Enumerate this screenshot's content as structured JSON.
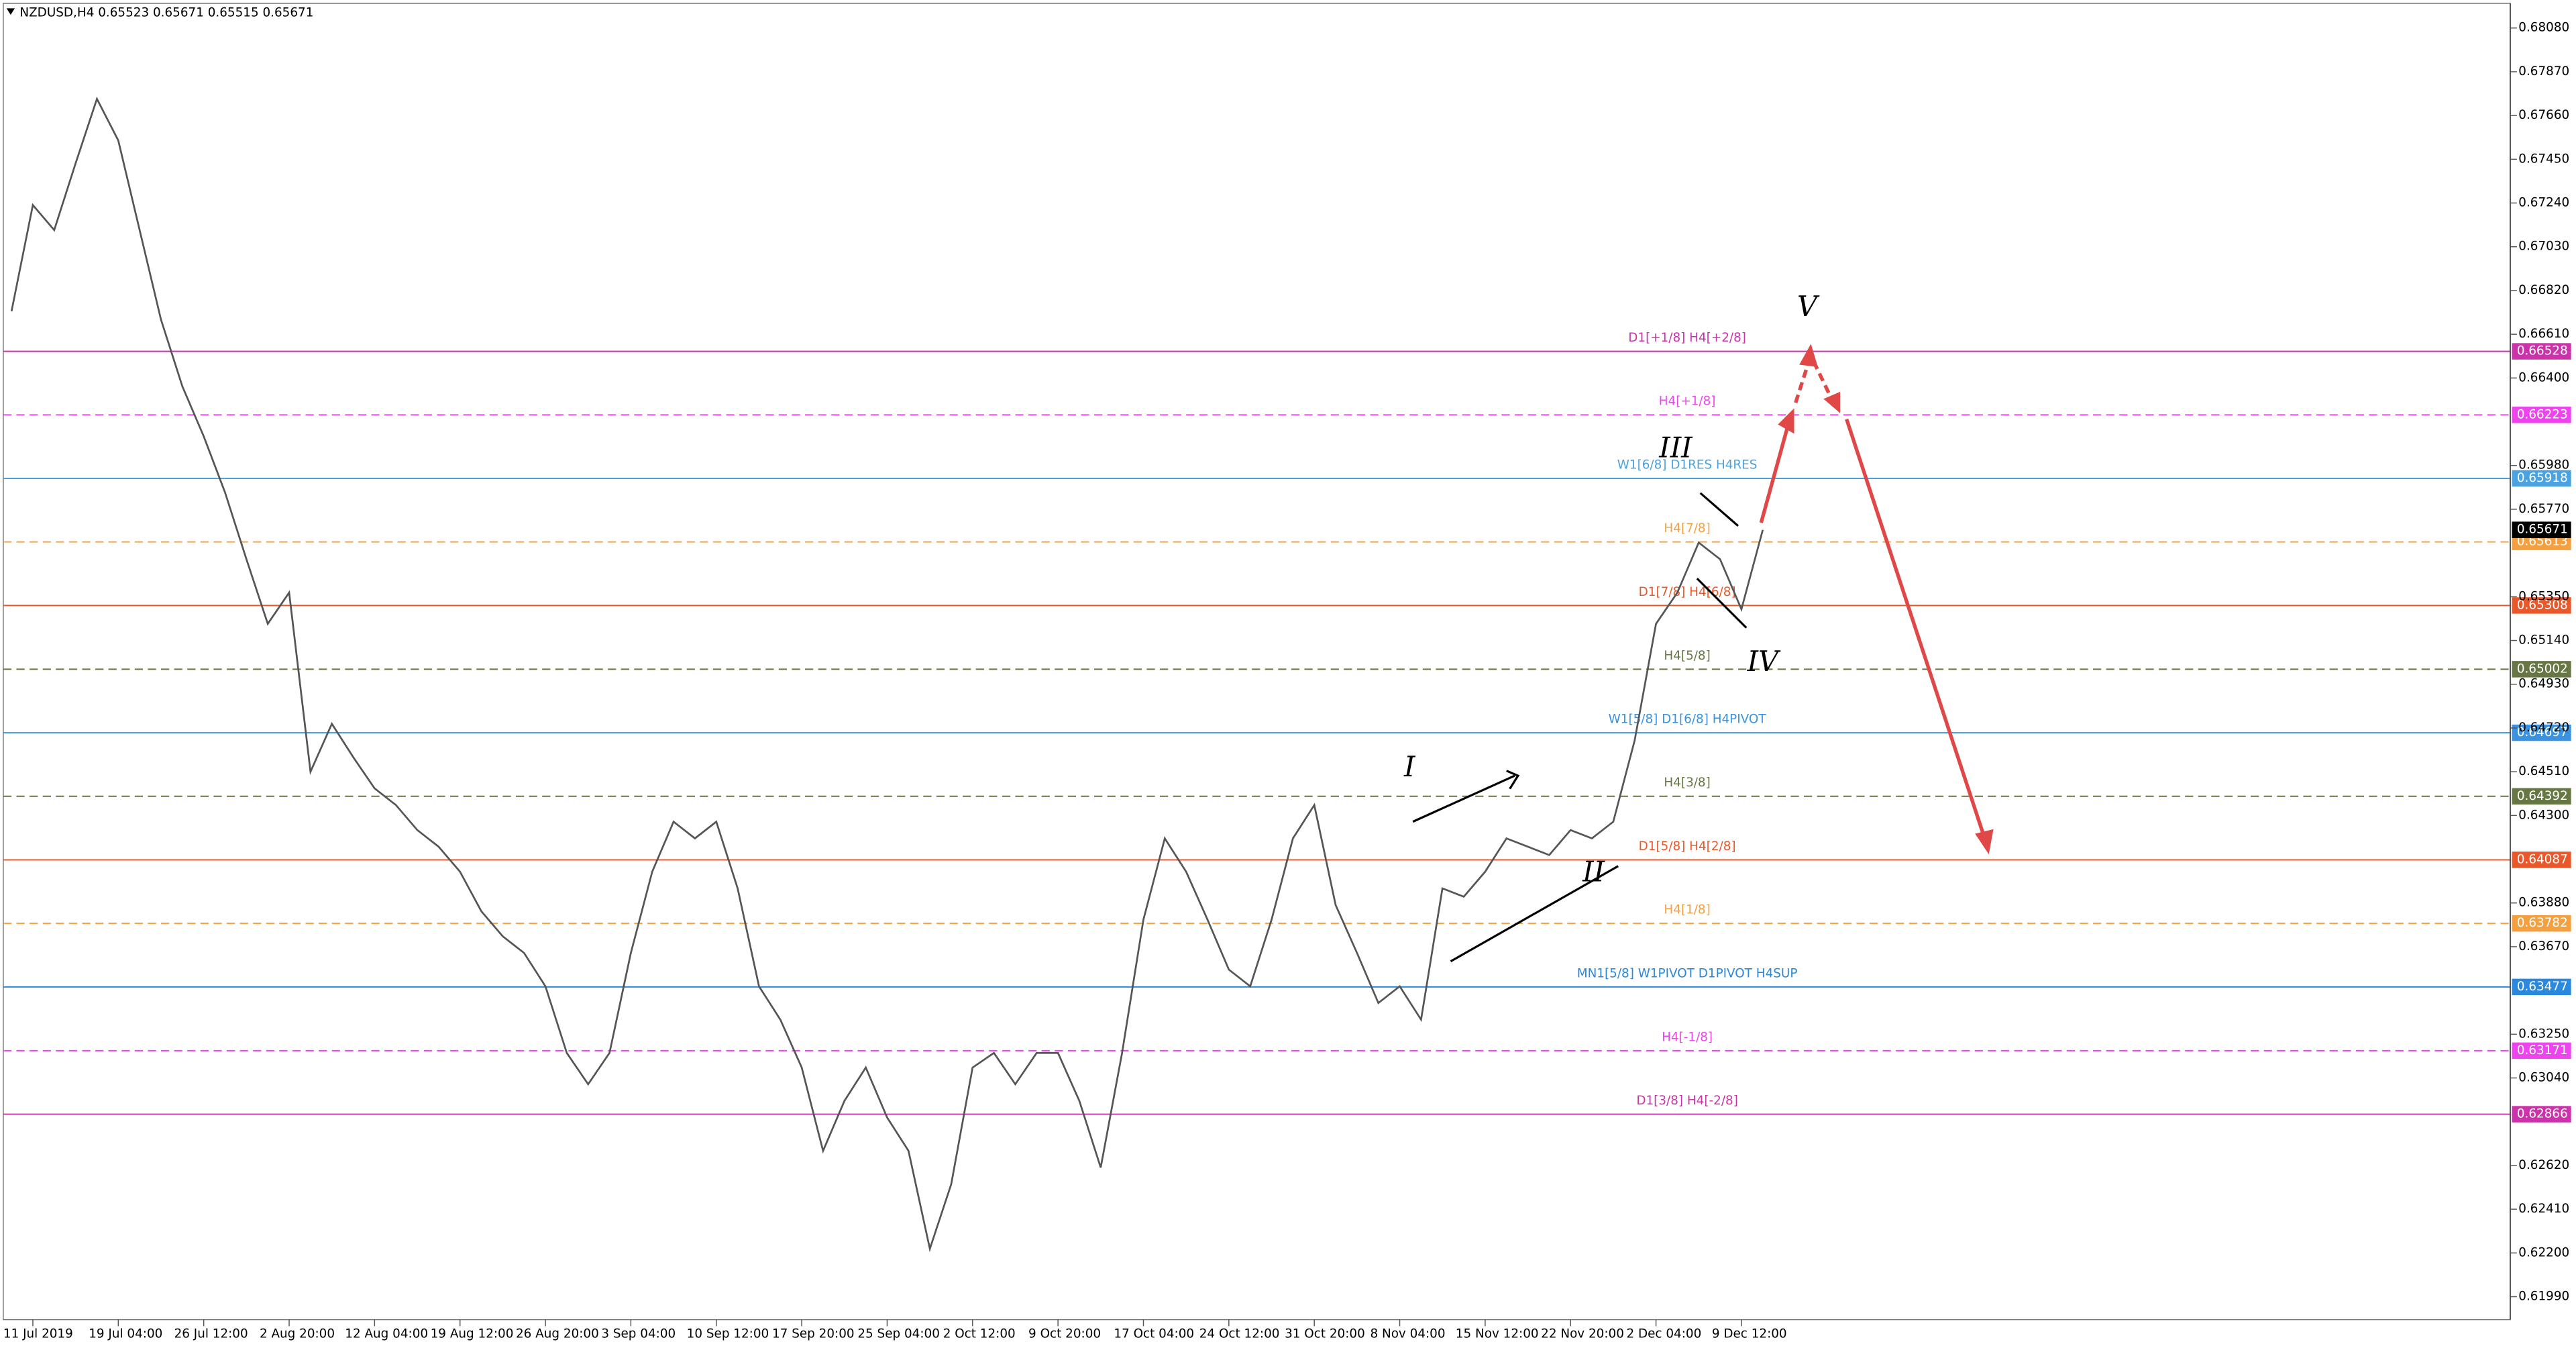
{
  "chart_data": {
    "type": "line",
    "title": "NZDUSD,H4  0.65523 0.65671 0.65515 0.65671",
    "categories": [
      null,
      "11 Jul 2019",
      null,
      null,
      null,
      "19 Jul 04:00",
      null,
      null,
      null,
      "26 Jul 12:00",
      null,
      null,
      null,
      "2 Aug 20:00",
      null,
      null,
      null,
      "12 Aug 04:00",
      null,
      null,
      null,
      "19 Aug 12:00",
      null,
      null,
      null,
      "26 Aug 20:00",
      null,
      null,
      null,
      "3 Sep 04:00",
      null,
      null,
      null,
      "10 Sep 12:00",
      null,
      null,
      null,
      "17 Sep 20:00",
      null,
      null,
      null,
      "25 Sep 04:00",
      null,
      null,
      null,
      "2 Oct 12:00",
      null,
      null,
      null,
      "9 Oct 20:00",
      null,
      null,
      null,
      "17 Oct 04:00",
      null,
      null,
      null,
      "24 Oct 12:00",
      null,
      null,
      null,
      "31 Oct 20:00",
      null,
      null,
      null,
      "8 Nov 04:00",
      null,
      null,
      null,
      "15 Nov 12:00",
      null,
      null,
      null,
      "22 Nov 20:00",
      null,
      null,
      null,
      "2 Dec 04:00",
      null,
      null,
      null,
      "9 Dec 12:00",
      null
    ],
    "series": [
      {
        "color": "#555555",
        "values": [
          0.6672,
          0.6723,
          0.6711,
          0.6743,
          0.6774,
          0.6754,
          0.6711,
          0.6668,
          0.6636,
          0.6612,
          0.6585,
          0.6553,
          0.6522,
          0.6537,
          0.6451,
          0.6474,
          0.6458,
          0.6443,
          0.6435,
          0.6423,
          0.6415,
          0.6403,
          0.6384,
          0.6372,
          0.6364,
          0.6348,
          0.6316,
          0.6301,
          0.6316,
          0.6364,
          0.6403,
          0.6427,
          0.6419,
          0.6427,
          0.6395,
          0.6348,
          0.6332,
          0.6309,
          0.6269,
          0.6293,
          0.6309,
          0.6285,
          0.6269,
          0.6222,
          0.6253,
          0.6309,
          0.6316,
          0.6301,
          0.6316,
          0.6316,
          0.6293,
          0.6261,
          0.6316,
          0.638,
          0.6419,
          0.6403,
          0.638,
          0.6356,
          0.6348,
          0.638,
          0.6419,
          0.6435,
          0.6387,
          0.6364,
          0.634,
          0.6348,
          0.6332,
          0.6395,
          0.6391,
          0.6403,
          0.6419,
          0.6415,
          0.6411,
          0.6423,
          0.6419,
          0.6427,
          0.6466,
          0.6522,
          0.6537,
          0.6561,
          0.6553,
          0.6529,
          0.65671
        ]
      }
    ],
    "ylim": [
      0.68214,
      0.6188
    ],
    "yticks": [
      {
        "value": 0.6808,
        "label": "0.68080"
      },
      {
        "value": 0.6787,
        "label": "0.67870"
      },
      {
        "value": 0.6766,
        "label": "0.67660"
      },
      {
        "value": 0.6745,
        "label": "0.67450"
      },
      {
        "value": 0.6724,
        "label": "0.67240"
      },
      {
        "value": 0.6703,
        "label": "0.67030"
      },
      {
        "value": 0.6682,
        "label": "0.66820"
      },
      {
        "value": 0.6661,
        "label": "0.66610"
      },
      {
        "value": 0.664,
        "label": "0.66400"
      },
      {
        "value": 0.6598,
        "label": "0.65980"
      },
      {
        "value": 0.6577,
        "label": "0.65770"
      },
      {
        "value": 0.6535,
        "label": "0.65350"
      },
      {
        "value": 0.6514,
        "label": "0.65140"
      },
      {
        "value": 0.6493,
        "label": "0.64930"
      },
      {
        "value": 0.6472,
        "label": "0.64720"
      },
      {
        "value": 0.6451,
        "label": "0.64510"
      },
      {
        "value": 0.643,
        "label": "0.64300"
      },
      {
        "value": 0.6388,
        "label": "0.63880"
      },
      {
        "value": 0.6367,
        "label": "0.63670"
      },
      {
        "value": 0.6325,
        "label": "0.63250"
      },
      {
        "value": 0.6304,
        "label": "0.63040"
      },
      {
        "value": 0.6262,
        "label": "0.62620"
      },
      {
        "value": 0.6241,
        "label": "0.62410"
      },
      {
        "value": 0.622,
        "label": "0.62200"
      },
      {
        "value": 0.6199,
        "label": "0.61990"
      }
    ],
    "levels": [
      {
        "name": "D1[+1/8] H4[+2/8]",
        "value": 0.66528,
        "color": "#cc33aa",
        "dashed": false
      },
      {
        "name": "H4[+1/8]",
        "value": 0.66223,
        "color": "#ee44ee",
        "dashed": true
      },
      {
        "name": "W1[6/8] D1RES H4RES",
        "value": 0.65918,
        "color": "#4aa3e0",
        "dashed": false
      },
      {
        "name": "H4[7/8]",
        "value": 0.65613,
        "color": "#f5a040",
        "dashed": true
      },
      {
        "name": "D1[7/8] H4[6/8]",
        "value": 0.65308,
        "color": "#e8582a",
        "dashed": false
      },
      {
        "name": "H4[5/8]",
        "value": 0.65002,
        "color": "#667744",
        "dashed": true
      },
      {
        "name": "W1[5/8] D1[6/8] H4PIVOT",
        "value": 0.64697,
        "color": "#3a93e0",
        "dashed": false
      },
      {
        "name": "H4[3/8]",
        "value": 0.64392,
        "color": "#667744",
        "dashed": true
      },
      {
        "name": "D1[5/8] H4[2/8]",
        "value": 0.64087,
        "color": "#e8582a",
        "dashed": false
      },
      {
        "name": "H4[1/8]",
        "value": 0.63782,
        "color": "#f5a040",
        "dashed": true
      },
      {
        "name": "MN1[5/8] W1PIVOT D1PIVOT H4SUP",
        "value": 0.63477,
        "color": "#2a88dd",
        "dashed": false
      },
      {
        "name": "H4[-1/8]",
        "value": 0.63171,
        "color": "#ee44ee",
        "dashed": true
      },
      {
        "name": "D1[3/8] H4[-2/8]",
        "value": 0.62866,
        "color": "#cc33aa",
        "dashed": false
      }
    ],
    "current_price": 0.65671,
    "annotations": [
      "I",
      "II",
      "III",
      "IV",
      "V"
    ]
  }
}
